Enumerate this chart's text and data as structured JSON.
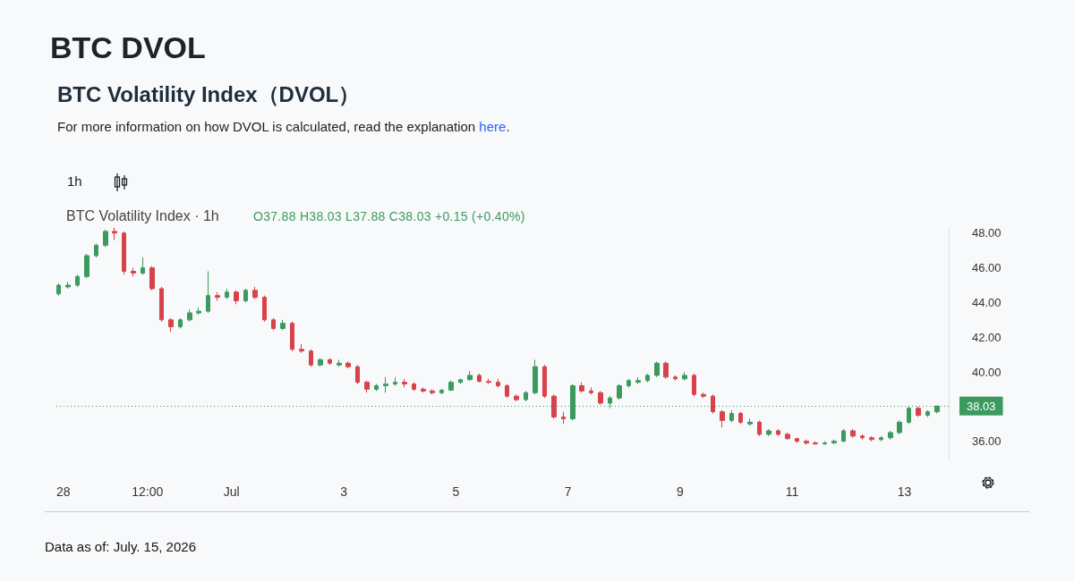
{
  "chart_data": {
    "type": "candlestick",
    "title": "BTC DVOL",
    "subtitle": "BTC Volatility Index（DVOL）",
    "annotations": [
      "For more information on how DVOL is calculated, read the explanation here.",
      "1h",
      "BTC Volatility Index · 1h",
      "O37.88 H38.03 L37.88 C38.03 +0.15 (+0.40%)",
      "Data as of: July. 15, 2026"
    ],
    "colors": [
      "#3d9a5f",
      "#3d9a5f",
      "#3d9a5f",
      "#3d9a5f",
      "#3d9a5f",
      "#3d9a5f",
      "#d8434b",
      "#d8434b",
      "#d8434b",
      "#3d9a5f",
      "#d8434b",
      "#d8434b",
      "#d8434b",
      "#3d9a5f",
      "#3d9a5f",
      "#3d9a5f",
      "#3d9a5f",
      "#d8434b",
      "#3d9a5f",
      "#d8434b",
      "#3d9a5f",
      "#d8434b",
      "#d8434b",
      "#d8434b",
      "#3d9a5f",
      "#d8434b",
      "#d8434b",
      "#d8434b",
      "#3d9a5f",
      "#d8434b",
      "#3d9a5f",
      "#d8434b",
      "#d8434b",
      "#d8434b",
      "#3d9a5f",
      "#3d9a5f",
      "#3d9a5f",
      "#d8434b",
      "#d8434b",
      "#d8434b",
      "#d8434b",
      "#3d9a5f",
      "#3d9a5f",
      "#3d9a5f",
      "#3d9a5f",
      "#d8434b",
      "#d8434b",
      "#d8434b",
      "#d8434b",
      "#d8434b",
      "#3d9a5f",
      "#3d9a5f",
      "#d8434b",
      "#d8434b",
      "#d8434b",
      "#3d9a5f",
      "#d8434b",
      "#d8434b",
      "#d8434b",
      "#3d9a5f",
      "#3d9a5f",
      "#3d9a5f",
      "#3d9a5f",
      "#3d9a5f",
      "#3d9a5f",
      "#d8434b",
      "#d8434b",
      "#3d9a5f",
      "#d8434b",
      "#d8434b",
      "#d8434b",
      "#d8434b",
      "#3d9a5f",
      "#d8434b",
      "#3d9a5f",
      "#d8434b",
      "#3d9a5f",
      "#d8434b",
      "#d8434b",
      "#d8434b",
      "#d8434b",
      "#d8434b",
      "#3d9a5f",
      "#3d9a5f",
      "#3d9a5f",
      "#d8434b",
      "#d8434b",
      "#d8434b",
      "#3d9a5f",
      "#3d9a5f",
      "#3d9a5f",
      "#3d9a5f",
      "#d8434b",
      "#3d9a5f",
      "#3d9a5f"
    ],
    "x": [
      "2026-06-27T22:00",
      "2026-06-28T02:00",
      "2026-06-28T06:00",
      "2026-06-28T10:00",
      "2026-06-28T14:00",
      "2026-06-28T18:00",
      "2026-06-28T22:00",
      "2026-06-29T02:00",
      "2026-06-29T06:00",
      "2026-06-29T10:00",
      "2026-06-29T14:00",
      "2026-06-29T18:00",
      "2026-06-29T22:00",
      "2026-06-30T02:00",
      "2026-06-30T06:00",
      "2026-06-30T10:00",
      "2026-06-30T14:00",
      "2026-06-30T18:00",
      "2026-06-30T22:00",
      "2026-07-01T02:00",
      "2026-07-01T06:00",
      "2026-07-01T10:00",
      "2026-07-01T14:00",
      "2026-07-01T18:00",
      "2026-07-01T22:00",
      "2026-07-02T02:00",
      "2026-07-02T06:00",
      "2026-07-02T10:00",
      "2026-07-02T14:00",
      "2026-07-02T18:00",
      "2026-07-02T22:00",
      "2026-07-03T02:00",
      "2026-07-03T06:00",
      "2026-07-03T10:00",
      "2026-07-03T14:00",
      "2026-07-03T18:00",
      "2026-07-03T22:00",
      "2026-07-04T02:00",
      "2026-07-04T06:00",
      "2026-07-04T10:00",
      "2026-07-04T14:00",
      "2026-07-04T18:00",
      "2026-07-04T22:00",
      "2026-07-05T02:00",
      "2026-07-05T06:00",
      "2026-07-05T10:00",
      "2026-07-05T14:00",
      "2026-07-05T18:00",
      "2026-07-05T22:00",
      "2026-07-06T02:00",
      "2026-07-06T06:00",
      "2026-07-06T10:00",
      "2026-07-06T14:00",
      "2026-07-06T18:00",
      "2026-07-06T22:00",
      "2026-07-07T02:00",
      "2026-07-07T06:00",
      "2026-07-07T10:00",
      "2026-07-07T14:00",
      "2026-07-07T18:00",
      "2026-07-07T22:00",
      "2026-07-08T02:00",
      "2026-07-08T06:00",
      "2026-07-08T10:00",
      "2026-07-08T14:00",
      "2026-07-08T18:00",
      "2026-07-08T22:00",
      "2026-07-09T02:00",
      "2026-07-09T06:00",
      "2026-07-09T10:00",
      "2026-07-09T14:00",
      "2026-07-09T18:00",
      "2026-07-09T22:00",
      "2026-07-10T02:00",
      "2026-07-10T06:00",
      "2026-07-10T10:00",
      "2026-07-10T14:00",
      "2026-07-10T18:00",
      "2026-07-10T22:00",
      "2026-07-11T02:00",
      "2026-07-11T06:00",
      "2026-07-11T10:00",
      "2026-07-11T14:00",
      "2026-07-11T18:00",
      "2026-07-11T22:00",
      "2026-07-12T02:00",
      "2026-07-12T06:00",
      "2026-07-12T10:00",
      "2026-07-12T14:00",
      "2026-07-12T18:00",
      "2026-07-12T22:00",
      "2026-07-13T02:00",
      "2026-07-13T06:00",
      "2026-07-13T10:00",
      "2026-07-13T14:00"
    ],
    "ohlc": [
      [
        44.5,
        45.1,
        44.4,
        45.0
      ],
      [
        44.9,
        45.2,
        44.8,
        45.0
      ],
      [
        45.0,
        45.6,
        44.9,
        45.5
      ],
      [
        45.5,
        46.8,
        45.4,
        46.7
      ],
      [
        46.7,
        47.4,
        46.6,
        47.3
      ],
      [
        47.3,
        48.2,
        47.2,
        48.1
      ],
      [
        48.1,
        48.3,
        47.6,
        48.0
      ],
      [
        48.0,
        48.1,
        45.6,
        45.8
      ],
      [
        45.8,
        46.0,
        45.5,
        45.7
      ],
      [
        45.7,
        46.6,
        45.6,
        46.0
      ],
      [
        46.0,
        46.1,
        44.7,
        44.8
      ],
      [
        44.8,
        44.9,
        42.9,
        43.0
      ],
      [
        43.0,
        43.1,
        42.3,
        42.6
      ],
      [
        42.6,
        43.1,
        42.5,
        43.0
      ],
      [
        43.0,
        43.6,
        42.9,
        43.4
      ],
      [
        43.4,
        43.7,
        43.3,
        43.5
      ],
      [
        43.5,
        45.8,
        43.4,
        44.4
      ],
      [
        44.4,
        44.6,
        44.1,
        44.3
      ],
      [
        44.3,
        44.8,
        44.2,
        44.6
      ],
      [
        44.6,
        44.7,
        43.9,
        44.1
      ],
      [
        44.1,
        44.8,
        44.0,
        44.7
      ],
      [
        44.7,
        44.9,
        44.2,
        44.3
      ],
      [
        44.3,
        44.4,
        42.9,
        43.0
      ],
      [
        43.0,
        43.1,
        42.4,
        42.5
      ],
      [
        42.5,
        43.0,
        42.4,
        42.8
      ],
      [
        42.8,
        42.9,
        41.2,
        41.3
      ],
      [
        41.3,
        41.6,
        41.1,
        41.2
      ],
      [
        41.2,
        41.3,
        40.3,
        40.4
      ],
      [
        40.4,
        40.8,
        40.3,
        40.7
      ],
      [
        40.7,
        40.8,
        40.4,
        40.5
      ],
      [
        40.4,
        40.7,
        40.3,
        40.5
      ],
      [
        40.5,
        40.6,
        40.2,
        40.3
      ],
      [
        40.3,
        40.4,
        39.3,
        39.4
      ],
      [
        39.4,
        39.5,
        38.8,
        39.0
      ],
      [
        39.0,
        39.3,
        38.9,
        39.2
      ],
      [
        39.2,
        39.7,
        38.8,
        39.3
      ],
      [
        39.3,
        39.7,
        39.2,
        39.4
      ],
      [
        39.4,
        39.6,
        39.1,
        39.3
      ],
      [
        39.3,
        39.4,
        38.9,
        39.0
      ],
      [
        39.0,
        39.1,
        38.8,
        38.9
      ],
      [
        38.9,
        39.0,
        38.7,
        38.8
      ],
      [
        38.8,
        39.0,
        38.7,
        38.95
      ],
      [
        38.95,
        39.5,
        38.9,
        39.4
      ],
      [
        39.4,
        39.6,
        39.3,
        39.55
      ],
      [
        39.55,
        40.05,
        39.5,
        39.8
      ],
      [
        39.8,
        39.9,
        39.4,
        39.45
      ],
      [
        39.45,
        39.6,
        39.3,
        39.4
      ],
      [
        39.4,
        39.6,
        39.1,
        39.2
      ],
      [
        39.2,
        39.3,
        38.5,
        38.6
      ],
      [
        38.6,
        38.7,
        38.3,
        38.4
      ],
      [
        38.4,
        38.9,
        38.3,
        38.8
      ],
      [
        38.8,
        40.7,
        38.7,
        40.3
      ],
      [
        40.3,
        40.4,
        38.5,
        38.6
      ],
      [
        38.6,
        38.7,
        37.3,
        37.4
      ],
      [
        37.4,
        37.7,
        37.0,
        37.3
      ],
      [
        37.3,
        39.3,
        37.2,
        39.2
      ],
      [
        39.2,
        39.4,
        38.8,
        38.9
      ],
      [
        38.9,
        39.1,
        38.7,
        38.8
      ],
      [
        38.8,
        38.9,
        38.1,
        38.2
      ],
      [
        38.2,
        38.6,
        37.9,
        38.5
      ],
      [
        38.5,
        39.3,
        38.4,
        39.2
      ],
      [
        39.2,
        39.6,
        39.1,
        39.5
      ],
      [
        39.4,
        39.7,
        39.3,
        39.5
      ],
      [
        39.5,
        39.9,
        39.4,
        39.8
      ],
      [
        39.8,
        40.6,
        39.7,
        40.5
      ],
      [
        40.5,
        40.6,
        39.6,
        39.7
      ],
      [
        39.7,
        39.8,
        39.5,
        39.6
      ],
      [
        39.6,
        40.0,
        39.5,
        39.8
      ],
      [
        39.8,
        39.9,
        38.6,
        38.7
      ],
      [
        38.7,
        38.8,
        38.5,
        38.6
      ],
      [
        38.6,
        38.7,
        37.6,
        37.7
      ],
      [
        37.7,
        37.8,
        36.8,
        37.2
      ],
      [
        37.2,
        37.8,
        37.1,
        37.6
      ],
      [
        37.6,
        37.7,
        37.0,
        37.1
      ],
      [
        37.0,
        37.3,
        36.9,
        37.1
      ],
      [
        37.1,
        37.2,
        36.3,
        36.4
      ],
      [
        36.4,
        36.7,
        36.3,
        36.6
      ],
      [
        36.6,
        36.7,
        36.3,
        36.4
      ],
      [
        36.4,
        36.5,
        36.1,
        36.15
      ],
      [
        36.15,
        36.2,
        35.9,
        36.0
      ],
      [
        36.0,
        36.1,
        35.8,
        35.9
      ],
      [
        35.9,
        36.0,
        35.8,
        35.85
      ],
      [
        35.85,
        36.0,
        35.8,
        35.9
      ],
      [
        35.9,
        36.1,
        35.85,
        36.0
      ],
      [
        36.0,
        36.7,
        35.95,
        36.6
      ],
      [
        36.6,
        36.7,
        36.2,
        36.3
      ],
      [
        36.3,
        36.4,
        36.1,
        36.2
      ],
      [
        36.2,
        36.3,
        36.0,
        36.1
      ],
      [
        36.1,
        36.3,
        36.0,
        36.2
      ],
      [
        36.2,
        36.6,
        36.1,
        36.5
      ],
      [
        36.5,
        37.2,
        36.4,
        37.1
      ],
      [
        37.1,
        38.0,
        37.0,
        37.9
      ],
      [
        37.9,
        38.0,
        37.4,
        37.5
      ],
      [
        37.5,
        37.8,
        37.4,
        37.7
      ],
      [
        37.7,
        38.03,
        37.6,
        38.03
      ]
    ],
    "xlim": [
      "2026-06-27T21:00",
      "2026-07-13T19:00"
    ],
    "xticks": [
      {
        "value": "2026-06-28",
        "label": "28"
      },
      {
        "value": "2026-06-29T12:00",
        "label": "12:00"
      },
      {
        "value": "2026-07-01",
        "label": "Jul"
      },
      {
        "value": "2026-07-03",
        "label": "3"
      },
      {
        "value": "2026-07-05",
        "label": "5"
      },
      {
        "value": "2026-07-07",
        "label": "7"
      },
      {
        "value": "2026-07-09",
        "label": "9"
      },
      {
        "value": "2026-07-11",
        "label": "11"
      },
      {
        "value": "2026-07-13",
        "label": "13"
      }
    ],
    "ylim": [
      34.9,
      48.3
    ],
    "yticks": [
      {
        "value": 36,
        "label": "36.00"
      },
      {
        "value": 40,
        "label": "40.00"
      },
      {
        "value": 42,
        "label": "42.00"
      },
      {
        "value": 44,
        "label": "44.00"
      },
      {
        "value": 46,
        "label": "46.00"
      },
      {
        "value": 48,
        "label": "48.00"
      }
    ],
    "ref_lines": [
      {
        "axis": "y",
        "value": 38.03,
        "label": "38.03",
        "color": "#3d9a5f",
        "line_style": "dotted"
      }
    ]
  }
}
